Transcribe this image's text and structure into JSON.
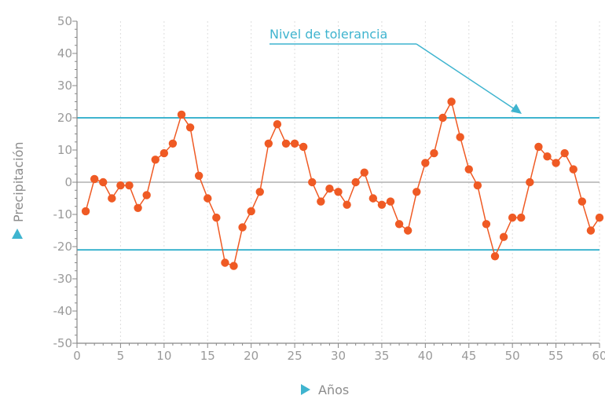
{
  "chart_data": {
    "type": "line",
    "xlabel": "Años",
    "ylabel": "Precipitación",
    "xlim": [
      0,
      60
    ],
    "ylim": [
      -50,
      50
    ],
    "x_ticks": [
      0,
      5,
      10,
      15,
      20,
      25,
      30,
      35,
      40,
      45,
      50,
      55,
      60
    ],
    "y_ticks": [
      50,
      40,
      30,
      20,
      10,
      0,
      -10,
      -20,
      -30,
      -40,
      -50
    ],
    "grid": "vertical",
    "tolerance_upper": 20,
    "tolerance_lower": -21,
    "zero_line": 0,
    "annotation": "Nivel de tolerancia",
    "colors": {
      "series": "#ef5a24",
      "tolerance": "#3fb4cf",
      "zero": "#b0b0b0",
      "axis": "#888888",
      "grid": "#dddddd"
    },
    "series": [
      {
        "x": [
          1,
          2,
          3,
          4,
          5,
          6,
          7,
          8,
          9,
          10,
          11,
          12,
          13,
          14,
          15,
          16,
          17,
          18,
          19,
          20,
          21,
          22,
          23,
          24,
          25,
          26,
          27,
          28,
          29,
          30,
          31,
          32,
          33,
          34,
          35,
          36,
          37,
          38,
          39,
          40,
          41,
          42,
          43,
          44,
          45,
          46,
          47,
          48,
          49,
          50,
          51,
          52,
          53,
          54,
          55,
          56,
          57,
          58,
          59,
          60
        ],
        "values": [
          -9,
          1,
          0,
          -5,
          -1,
          -1,
          -8,
          -4,
          7,
          9,
          12,
          21,
          17,
          2,
          -5,
          -11,
          -25,
          -26,
          -14,
          -9,
          -3,
          12,
          18,
          12,
          12,
          11,
          0,
          -6,
          -2,
          -3,
          -7,
          0,
          3,
          -5,
          -7,
          -6,
          -13,
          -15,
          -3,
          6,
          9,
          20,
          25,
          14,
          4,
          -1,
          -13,
          -23,
          -17,
          -11,
          -11,
          0,
          11,
          8,
          6,
          9,
          4,
          -6,
          -15,
          -11
        ]
      }
    ]
  }
}
